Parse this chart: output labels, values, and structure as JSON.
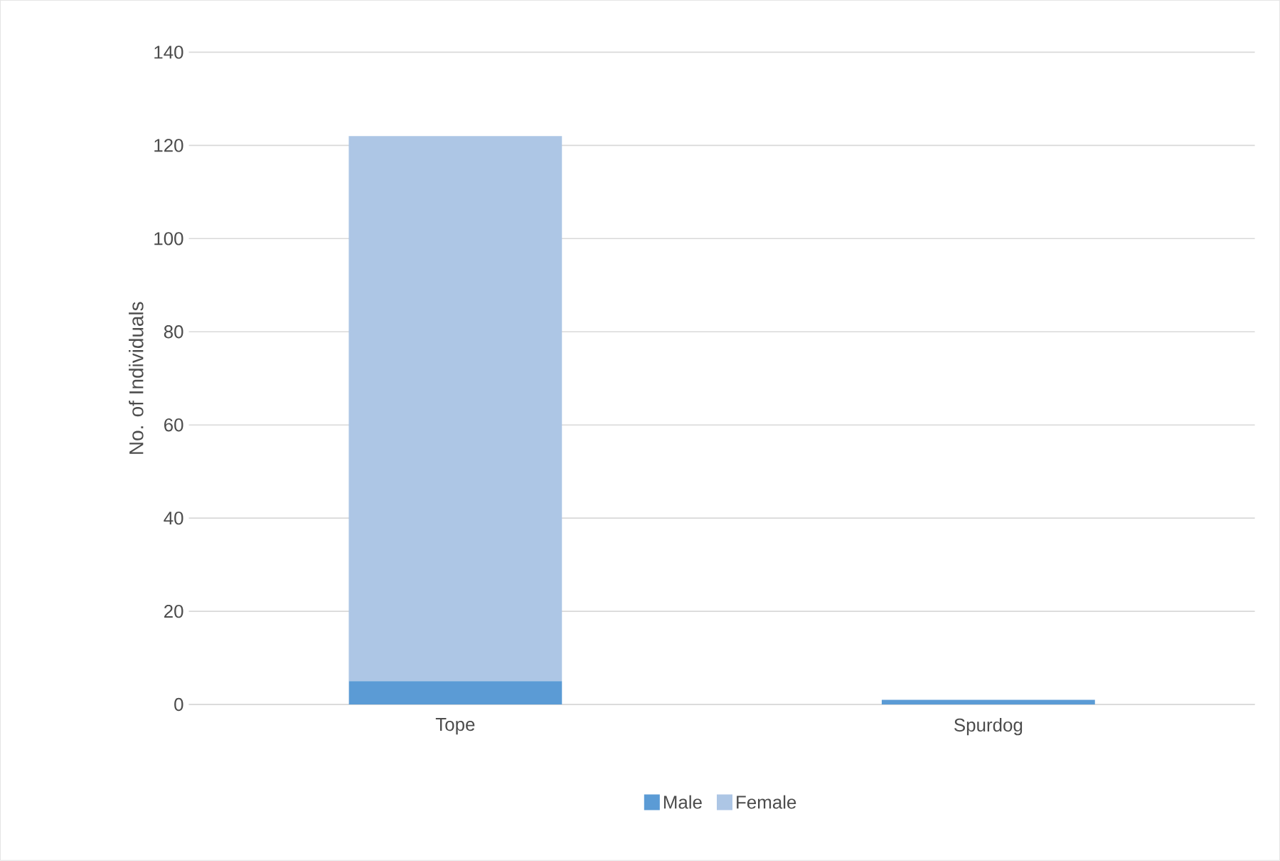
{
  "chart_data": {
    "type": "bar",
    "stacked": true,
    "ylabel": "No. of Individuals",
    "categories": [
      "Tope",
      "Spurdog"
    ],
    "series": [
      {
        "name": "Male",
        "color": "#5b9bd5",
        "values": [
          5,
          1
        ]
      },
      {
        "name": "Female",
        "color": "#adc6e5",
        "values": [
          117,
          0
        ]
      }
    ],
    "ylim": [
      0,
      140
    ],
    "yticks": [
      0,
      20,
      40,
      60,
      80,
      100,
      120,
      140
    ],
    "grid": "y",
    "legend": "bottom"
  }
}
